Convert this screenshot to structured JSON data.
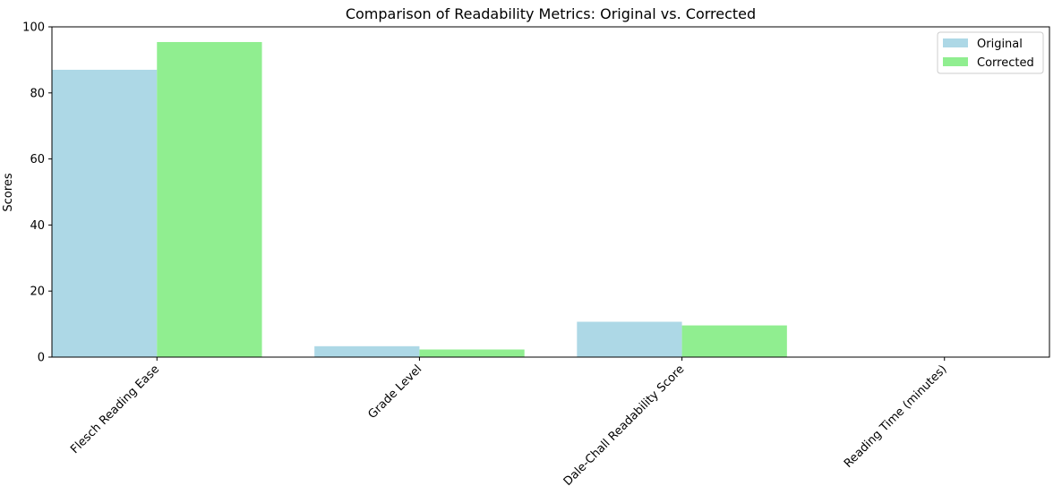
{
  "chart_data": {
    "type": "bar",
    "title": "Comparison of Readability Metrics: Original vs. Corrected",
    "xlabel": "",
    "ylabel": "Scores",
    "categories": [
      "Flesch Reading Ease",
      "Grade Level",
      "Dale-Chall Readability Score",
      "Reading Time (minutes)"
    ],
    "series": [
      {
        "name": "Original",
        "color": "#add8e6",
        "values": [
          87.0,
          3.3,
          10.7,
          0.1
        ]
      },
      {
        "name": "Corrected",
        "color": "#90ee90",
        "values": [
          95.4,
          2.3,
          9.6,
          0.1
        ]
      }
    ],
    "ylim": [
      0,
      100
    ],
    "yticks": [
      0,
      20,
      40,
      60,
      80,
      100
    ],
    "grid": false,
    "legend_position": "top-right"
  }
}
